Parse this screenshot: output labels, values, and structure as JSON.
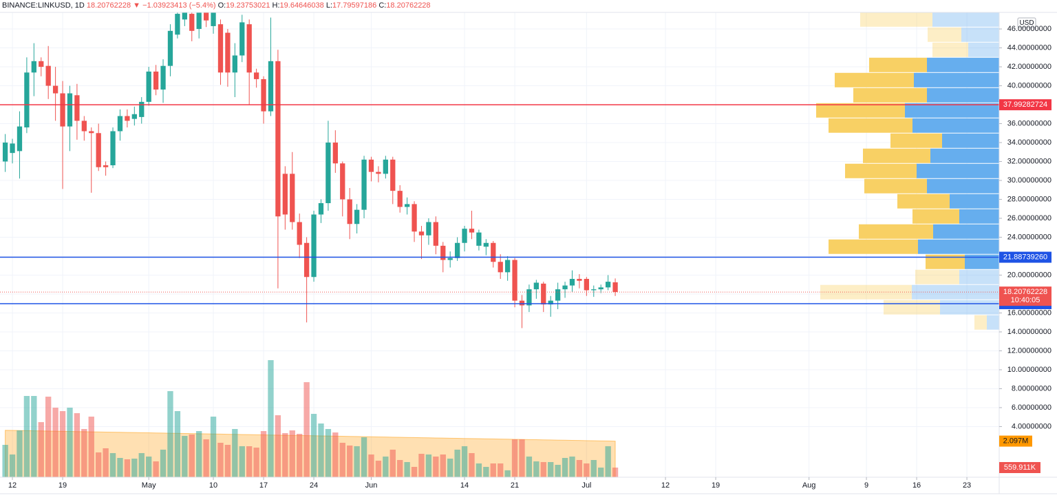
{
  "chart_data": {
    "type": "candlestick",
    "header": {
      "symbol": "BINANCE:LINKUSD, 1D",
      "change": "▼ −1.03923413 (−5.4%)",
      "o": "O:",
      "h": "H:",
      "l": "L:",
      "c": "C:"
    },
    "currency": "USD",
    "up_color": "#26a69a",
    "down_color": "#ef5350",
    "open": [
      32.0,
      32.9,
      33.1,
      35.6,
      41.4,
      42.6,
      42.1,
      40.0,
      39.2,
      35.7,
      39.0,
      36.3,
      35.2,
      35.0,
      31.6,
      31.6,
      35.2,
      36.8,
      36.5,
      36.7,
      38.3,
      41.5,
      39.6,
      42.1,
      45.4,
      47.0,
      47.6,
      46.0,
      48.0,
      46.3,
      46.5,
      45.6,
      41.4,
      43.2,
      46.5,
      41.4,
      40.7,
      37.3,
      42.6,
      30.7,
      30.7,
      25.6,
      23.4,
      19.8,
      26.4,
      27.6,
      34.0,
      31.8,
      28.0,
      25.4,
      26.9,
      32.2,
      30.9,
      30.7,
      32.2,
      28.9,
      27.2,
      27.5,
      24.6,
      24.2,
      25.6,
      23.1,
      21.6,
      21.8,
      23.4,
      24.9,
      23.1,
      23.0,
      23.4,
      21.4,
      20.3,
      21.6,
      17.3,
      16.8,
      18.5,
      19.1,
      16.9,
      17.3,
      18.5,
      18.9,
      19.6,
      19.6,
      18.4,
      18.5,
      18.7,
      19.23753021
    ],
    "high": [
      34.9,
      34.4,
      37.3,
      43.0,
      44.5,
      43.0,
      44.2,
      42.0,
      40.5,
      40.0,
      40.2,
      36.8,
      35.6,
      36.0,
      32.0,
      35.6,
      37.5,
      37.5,
      37.8,
      38.8,
      42.0,
      42.2,
      42.8,
      46.5,
      48.5,
      50.0,
      48.0,
      49.0,
      49.0,
      48.5,
      47.0,
      46.0,
      44.5,
      47.5,
      47.0,
      41.8,
      41.0,
      47.2,
      43.8,
      31.5,
      33.0,
      26.5,
      24.0,
      26.8,
      28.0,
      36.3,
      35.3,
      32.0,
      29.2,
      27.5,
      32.6,
      32.5,
      31.5,
      32.6,
      32.5,
      29.5,
      28.2,
      27.8,
      25.2,
      26.0,
      26.2,
      23.5,
      22.5,
      24.0,
      25.2,
      26.8,
      24.8,
      23.8,
      23.6,
      22.2,
      22.0,
      21.8,
      17.9,
      19.0,
      19.5,
      19.3,
      17.8,
      19.2,
      19.3,
      20.5,
      20.1,
      19.8,
      18.9,
      19.0,
      20.0,
      19.64646038
    ],
    "low": [
      30.9,
      31.8,
      30.2,
      35.0,
      38.9,
      41.0,
      38.6,
      36.3,
      29.1,
      33.1,
      34.3,
      34.2,
      28.7,
      31.0,
      30.5,
      31.3,
      34.2,
      35.6,
      35.8,
      36.0,
      37.9,
      39.0,
      38.2,
      41.0,
      45.0,
      46.3,
      44.7,
      45.0,
      46.2,
      45.5,
      40.1,
      39.9,
      38.8,
      42.5,
      38.0,
      39.8,
      36.0,
      36.8,
      18.6,
      24.8,
      24.8,
      21.8,
      15.0,
      19.3,
      25.5,
      26.8,
      30.8,
      26.2,
      23.8,
      24.4,
      26.0,
      29.9,
      29.8,
      30.2,
      27.5,
      26.6,
      26.4,
      23.5,
      21.7,
      23.2,
      22.2,
      20.3,
      20.8,
      21.5,
      22.5,
      23.8,
      22.6,
      22.1,
      20.8,
      19.6,
      19.4,
      16.6,
      14.4,
      16.1,
      17.5,
      16.1,
      15.6,
      16.4,
      17.6,
      18.2,
      18.6,
      17.8,
      17.7,
      18.1,
      18.4,
      17.79597186
    ],
    "close": [
      34.0,
      33.9,
      35.7,
      41.4,
      42.6,
      42.0,
      40.0,
      39.2,
      35.7,
      39.2,
      36.3,
      35.2,
      35.0,
      31.4,
      31.4,
      35.2,
      36.8,
      36.3,
      37.0,
      38.3,
      41.5,
      39.6,
      42.1,
      45.8,
      47.6,
      49.0,
      45.8,
      48.0,
      46.9,
      47.8,
      41.4,
      41.4,
      43.2,
      46.7,
      41.4,
      40.7,
      37.3,
      42.6,
      26.2,
      26.4,
      25.6,
      23.2,
      19.8,
      26.4,
      27.6,
      34.0,
      31.8,
      28.0,
      25.4,
      26.9,
      32.2,
      30.9,
      30.7,
      32.2,
      28.9,
      27.2,
      27.5,
      24.6,
      24.2,
      25.6,
      23.1,
      21.6,
      21.8,
      23.4,
      24.9,
      24.5,
      24.5,
      23.4,
      21.4,
      20.3,
      21.6,
      17.3,
      16.8,
      18.5,
      19.2,
      16.9,
      17.3,
      18.5,
      18.9,
      19.6,
      19.4,
      18.4,
      18.5,
      18.7,
      19.3,
      18.20762228
    ],
    "xlim": [
      -0.73,
      138.5
    ],
    "xticks": [
      {
        "value": 1,
        "label": "12"
      },
      {
        "value": 8,
        "label": "19"
      },
      {
        "value": 20,
        "label": "May"
      },
      {
        "value": 29,
        "label": "10"
      },
      {
        "value": 36,
        "label": "17"
      },
      {
        "value": 43,
        "label": "24"
      },
      {
        "value": 51,
        "label": "Jun"
      },
      {
        "value": 64,
        "label": "14"
      },
      {
        "value": 71,
        "label": "21"
      },
      {
        "value": 81,
        "label": "Jul"
      },
      {
        "value": 92,
        "label": "12"
      },
      {
        "value": 99,
        "label": "19"
      },
      {
        "value": 112,
        "label": "Aug"
      },
      {
        "value": 120,
        "label": "9"
      },
      {
        "value": 127,
        "label": "16"
      },
      {
        "value": 134,
        "label": "23"
      }
    ],
    "ylim": [
      -1.35,
      47.75
    ],
    "yticks": [
      {
        "value": 4,
        "label": "4.00000000"
      },
      {
        "value": 6,
        "label": "6.00000000"
      },
      {
        "value": 8,
        "label": "8.00000000"
      },
      {
        "value": 10,
        "label": "10.00000000"
      },
      {
        "value": 12,
        "label": "12.00000000"
      },
      {
        "value": 14,
        "label": "14.00000000"
      },
      {
        "value": 16,
        "label": "16.00000000"
      },
      {
        "value": 18,
        "label": "18.00000000"
      },
      {
        "value": 20,
        "label": "20.00000000"
      },
      {
        "value": 22,
        "label": "22.00000000"
      },
      {
        "value": 24,
        "label": "24.00000000"
      },
      {
        "value": 26,
        "label": "26.00000000"
      },
      {
        "value": 28,
        "label": "28.00000000"
      },
      {
        "value": 30,
        "label": "30.00000000"
      },
      {
        "value": 32,
        "label": "32.00000000"
      },
      {
        "value": 34,
        "label": "34.00000000"
      },
      {
        "value": 36,
        "label": "36.00000000"
      },
      {
        "value": 38,
        "label": "38.00000000"
      },
      {
        "value": 40,
        "label": "40.00000000"
      },
      {
        "value": 42,
        "label": "42.00000000"
      },
      {
        "value": 44,
        "label": "44.00000000"
      },
      {
        "value": 46,
        "label": "46.00000000"
      }
    ],
    "grid": true,
    "y2lim": [
      0,
      27000000
    ],
    "volume": {
      "axis": "y2",
      "last_label": "559.911K",
      "values": [
        1880000,
        1320000,
        2720000,
        4720000,
        4720000,
        3200000,
        4680000,
        4040000,
        3840000,
        4040000,
        3720000,
        2800000,
        3520000,
        1440000,
        1680000,
        1400000,
        1120000,
        1040000,
        1080000,
        1400000,
        1200000,
        920000,
        1600000,
        5000000,
        3840000,
        2400000,
        2480000,
        2680000,
        2200000,
        3520000,
        2000000,
        1880000,
        2800000,
        1800000,
        1800000,
        1720000,
        2680000,
        6800000,
        3600000,
        2560000,
        2720000,
        2520000,
        5520000,
        3680000,
        3120000,
        2800000,
        2600000,
        2000000,
        1840000,
        1800000,
        2320000,
        1320000,
        960000,
        1200000,
        1600000,
        1000000,
        880000,
        600000,
        1360000,
        1320000,
        1200000,
        1320000,
        1080000,
        1600000,
        1800000,
        1400000,
        800000,
        600000,
        800000,
        800000,
        400000,
        2200000,
        2200000,
        1200000,
        920000,
        880000,
        880000,
        720000,
        1120000,
        1200000,
        1000000,
        800000,
        1000000,
        560000,
        1800000,
        559911
      ]
    },
    "volume_ma": {
      "axis": "y2",
      "color": "#ff9800",
      "last_label": "2.097M",
      "values": [
        2726000,
        2718600,
        2711200,
        2703800,
        2696400,
        2689000,
        2681600,
        2674200,
        2666800,
        2659400,
        2652000,
        2644600,
        2637200,
        2629800,
        2622400,
        2615000,
        2607600,
        2600200,
        2592800,
        2585400,
        2578000,
        2570600,
        2563200,
        2555800,
        2548400,
        2541000,
        2533600,
        2526200,
        2518800,
        2511400,
        2504000,
        2496600,
        2489200,
        2481800,
        2474400,
        2467000,
        2459600,
        2452200,
        2444800,
        2437400,
        2430000,
        2422600,
        2415200,
        2407800,
        2400400,
        2393000,
        2385600,
        2378200,
        2370800,
        2363400,
        2356000,
        2348600,
        2341200,
        2333800,
        2326400,
        2319000,
        2311600,
        2304200,
        2296800,
        2289400,
        2282000,
        2274600,
        2267200,
        2259800,
        2252400,
        2245000,
        2237600,
        2230200,
        2222800,
        2215400,
        2208000,
        2200600,
        2193200,
        2185800,
        2178400,
        2171000,
        2163600,
        2156200,
        2148800,
        2141400,
        2134000,
        2126600,
        2119200,
        2111800,
        2104400,
        2097000
      ]
    },
    "price_lines": [
      {
        "value": 37.99282724,
        "color": "#f23645"
      },
      {
        "value": 21.8873926,
        "label": "21.88739260",
        "color": "#1e53e5"
      },
      {
        "value": 16.98264366,
        "color": "#1e53e5"
      }
    ],
    "countdown": "10:40:05",
    "volume_profile": {
      "up_color": "#5eaaed",
      "down_color": "#f8cd5c",
      "value_area": [
        3,
        16
      ],
      "bins": [
        47.8,
        46.2,
        44.6,
        43.0,
        41.4,
        39.8,
        38.2,
        36.6,
        35.0,
        33.4,
        31.8,
        30.2,
        28.6,
        27.0,
        25.4,
        23.8,
        22.2,
        20.6,
        19.0,
        17.4,
        15.8,
        14.2
      ],
      "up": [
        97,
        55,
        45,
        105,
        124,
        105,
        137,
        126,
        83,
        100,
        120,
        105,
        72,
        58,
        96,
        118,
        50,
        58,
        127,
        86,
        18
      ],
      "down": [
        105,
        49,
        52,
        84,
        115,
        107,
        129,
        122,
        75,
        98,
        104,
        91,
        76,
        68,
        108,
        130,
        57,
        64,
        133,
        82,
        18
      ]
    }
  }
}
